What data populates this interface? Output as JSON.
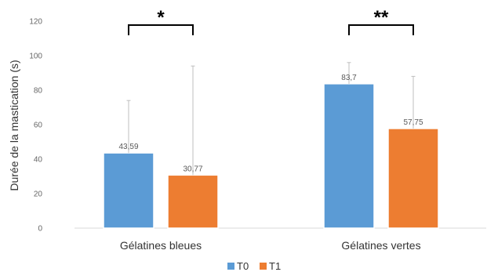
{
  "chart_data": {
    "type": "bar",
    "ylabel": "Durée de la mastication (s)",
    "ylim": [
      0,
      120
    ],
    "yticks": [
      0,
      20,
      40,
      60,
      80,
      100,
      120
    ],
    "categories": [
      "Gélatines bleues",
      "Gélatines vertes"
    ],
    "series": [
      {
        "name": "T0",
        "color": "#5b9bd5",
        "values": [
          43.59,
          83.7
        ],
        "labels": [
          "43,59",
          "83,7"
        ],
        "error_top": [
          74,
          96
        ]
      },
      {
        "name": "T1",
        "color": "#ed7d31",
        "values": [
          30.77,
          57.75
        ],
        "labels": [
          "30,77",
          "57,75"
        ],
        "error_top": [
          94,
          88
        ]
      }
    ],
    "significance": [
      "*",
      "**"
    ],
    "grid": false,
    "legend": "bottom"
  }
}
